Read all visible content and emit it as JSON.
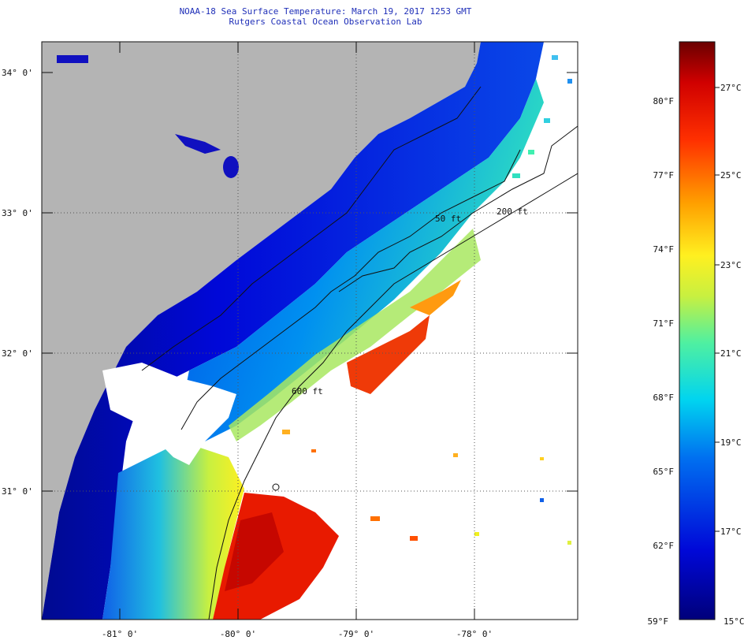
{
  "title": "NOAA-18 Sea Surface Temperature:  March 19, 2017 1253 GMT",
  "subtitle": "Rutgers Coastal Ocean Observation Lab",
  "map": {
    "lat_labels": [
      "34° 0'",
      "33° 0'",
      "32° 0'",
      "31° 0'"
    ],
    "lon_labels": [
      "-81° 0'",
      "-80° 0'",
      "-79° 0'",
      "-78° 0'"
    ],
    "contour_labels": [
      "50 ft",
      "200 ft",
      "600 ft"
    ],
    "colors": {
      "land": "#b4b4b4",
      "contour": "#111111",
      "grid": "#555555"
    }
  },
  "colorbar": {
    "fahrenheit": [
      "80°F",
      "77°F",
      "74°F",
      "71°F",
      "68°F",
      "65°F",
      "62°F",
      "59°F"
    ],
    "celsius": [
      "27°C",
      "25°C",
      "23°C",
      "21°C",
      "19°C",
      "17°C",
      "15°C"
    ],
    "stops": [
      "#00007a",
      "#0008d8",
      "#0070f0",
      "#00d4f0",
      "#50f0a0",
      "#c8f040",
      "#fff020",
      "#ffa000",
      "#ff3000",
      "#d00000",
      "#6a0000"
    ]
  }
}
